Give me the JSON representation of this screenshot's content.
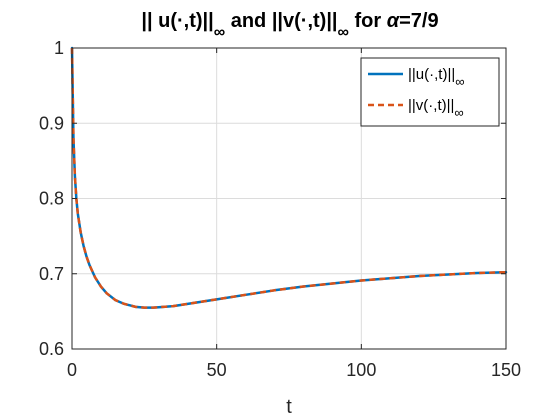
{
  "chart_data": {
    "type": "line",
    "title": {
      "part1": "|| u(·,t)||",
      "sub1": "∞",
      "part2": " and ||v(·,t)||",
      "sub2": "∞",
      "part3": " for ",
      "alpha": "α",
      "part4": "=7/9"
    },
    "xlabel": "t",
    "ylabel": "",
    "xlim": [
      0,
      150
    ],
    "ylim": [
      0.6,
      1.0
    ],
    "xticks": [
      0,
      50,
      100,
      150
    ],
    "xtick_labels": [
      "0",
      "50",
      "100",
      "150"
    ],
    "yticks": [
      0.6,
      0.7,
      0.8,
      0.9,
      1.0
    ],
    "ytick_labels": [
      "0.6",
      "0.7",
      "0.8",
      "0.9",
      "1"
    ],
    "grid": true,
    "legend_position": "top-right",
    "x": [
      0,
      0.5,
      1,
      1.5,
      2,
      3,
      4,
      5,
      6,
      8,
      10,
      12,
      15,
      18,
      20,
      22,
      25,
      28,
      30,
      35,
      40,
      45,
      50,
      60,
      70,
      80,
      90,
      100,
      110,
      120,
      130,
      140,
      150
    ],
    "series": [
      {
        "name": "||u(·,t)||",
        "name_sub": "∞",
        "color": "#0072BD",
        "style": "solid",
        "values": [
          1.0,
          0.88,
          0.83,
          0.8,
          0.78,
          0.755,
          0.737,
          0.723,
          0.712,
          0.695,
          0.683,
          0.674,
          0.665,
          0.66,
          0.658,
          0.656,
          0.655,
          0.655,
          0.6555,
          0.657,
          0.66,
          0.663,
          0.666,
          0.672,
          0.678,
          0.683,
          0.687,
          0.691,
          0.694,
          0.697,
          0.699,
          0.701,
          0.702
        ]
      },
      {
        "name": "||v(·,t)||",
        "name_sub": "∞",
        "color": "#D95319",
        "style": "dashed",
        "values": [
          1.0,
          0.88,
          0.83,
          0.8,
          0.78,
          0.755,
          0.737,
          0.723,
          0.712,
          0.695,
          0.683,
          0.674,
          0.665,
          0.66,
          0.658,
          0.656,
          0.655,
          0.655,
          0.6555,
          0.657,
          0.66,
          0.663,
          0.666,
          0.672,
          0.678,
          0.683,
          0.687,
          0.691,
          0.694,
          0.697,
          0.699,
          0.701,
          0.702
        ]
      }
    ]
  }
}
